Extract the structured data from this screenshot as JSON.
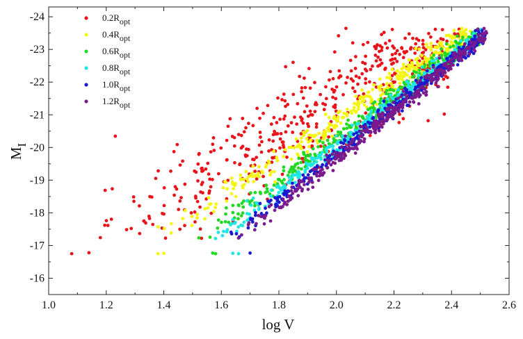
{
  "chart_data": {
    "type": "scatter",
    "title": "",
    "xlabel": "log V",
    "ylabel": "M",
    "ylabel_subscript": "I",
    "xlim": [
      1.0,
      2.6
    ],
    "ylim": [
      -15.5,
      -24.3
    ],
    "y_inverted": true,
    "xticks": [
      1.0,
      1.2,
      1.4,
      1.6,
      1.8,
      2.0,
      2.2,
      2.4,
      2.6
    ],
    "xtick_labels": [
      "1.0",
      "1.2",
      "1.4",
      "1.6",
      "1.8",
      "2.0",
      "2.2",
      "2.4",
      "2.6"
    ],
    "yticks": [
      -16,
      -17,
      -18,
      -19,
      -20,
      -21,
      -22,
      -23,
      -24
    ],
    "ytick_labels": [
      "-16",
      "-17",
      "-18",
      "-19",
      "-20",
      "-21",
      "-22",
      "-23",
      "-24"
    ],
    "grid": false,
    "legend_position": "top-left",
    "series": [
      {
        "name": "0.2R",
        "name_subscript": "opt",
        "color": "#e8141a",
        "offset": 0.0,
        "mag_mid": -17.0,
        "mag_bright": -23.6,
        "scatter": 1.0
      },
      {
        "name": "0.4R",
        "name_subscript": "opt",
        "color": "#f5f514",
        "offset": 0.3,
        "mag_mid": -17.0,
        "mag_bright": -23.6,
        "scatter": 0.45
      },
      {
        "name": "0.6R",
        "name_subscript": "opt",
        "color": "#22d822",
        "offset": 0.48,
        "mag_mid": -16.9,
        "mag_bright": -23.5,
        "scatter": 0.35
      },
      {
        "name": "0.8R",
        "name_subscript": "opt",
        "color": "#1fe6e6",
        "offset": 0.56,
        "mag_mid": -16.9,
        "mag_bright": -23.5,
        "scatter": 0.3
      },
      {
        "name": "1.0R",
        "name_subscript": "opt",
        "color": "#1a1ad0",
        "offset": 0.62,
        "mag_mid": -16.9,
        "mag_bright": -23.5,
        "scatter": 0.3
      },
      {
        "name": "1.2R",
        "name_subscript": "opt",
        "color": "#7a1a8c",
        "offset": 0.67,
        "mag_mid": -16.9,
        "mag_bright": -23.5,
        "scatter": 0.3
      }
    ],
    "isolated_points": [
      {
        "x": 1.08,
        "y": -16.75,
        "series": 0
      },
      {
        "x": 1.14,
        "y": -16.78,
        "series": 0
      },
      {
        "x": 1.38,
        "y": -16.75,
        "series": 1
      },
      {
        "x": 1.4,
        "y": -16.76,
        "series": 1
      },
      {
        "x": 1.57,
        "y": -16.77,
        "series": 2
      },
      {
        "x": 1.58,
        "y": -16.75,
        "series": 2
      },
      {
        "x": 1.64,
        "y": -16.76,
        "series": 3
      },
      {
        "x": 1.66,
        "y": -16.75,
        "series": 3
      },
      {
        "x": 1.7,
        "y": -16.77,
        "series": 4
      }
    ]
  }
}
